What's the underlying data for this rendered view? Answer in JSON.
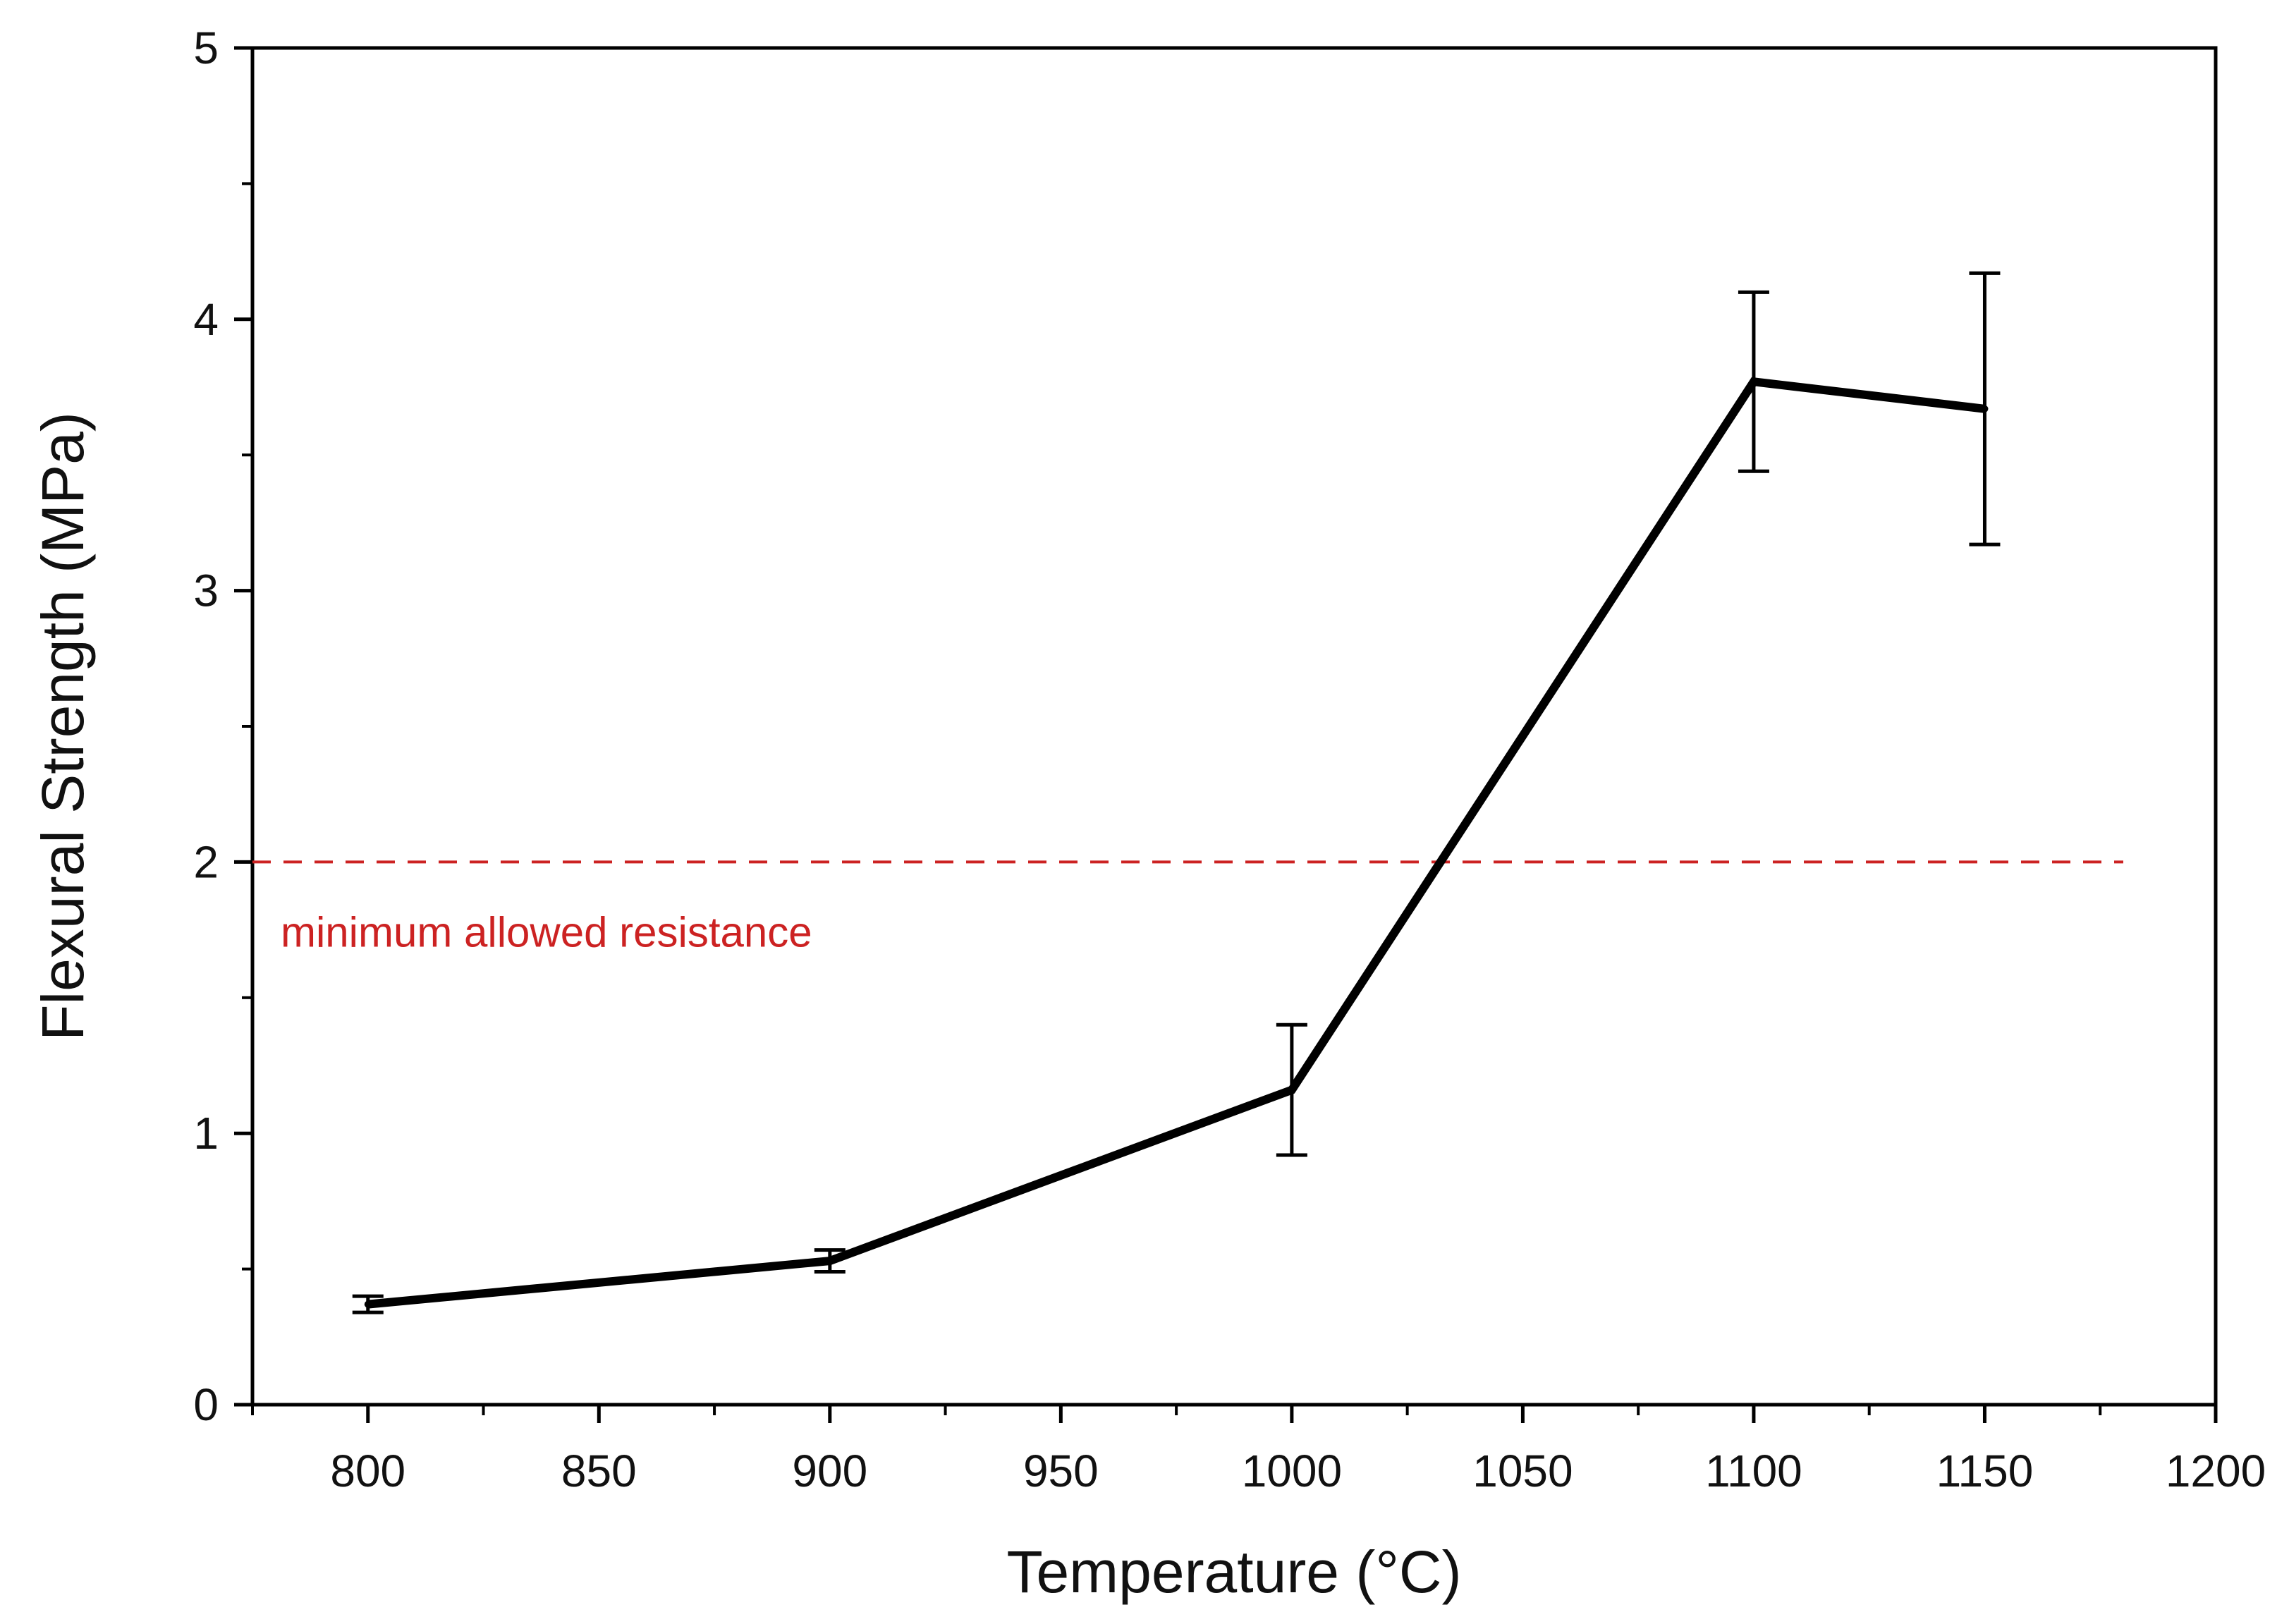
{
  "chart_data": {
    "type": "line",
    "title": "",
    "xlabel": "Temperature (°C)",
    "ylabel": "Flexural Strength (MPa)",
    "xlim": [
      775,
      1200
    ],
    "ylim": [
      0,
      5
    ],
    "x_ticks": [
      800,
      850,
      900,
      950,
      1000,
      1050,
      1100,
      1150,
      1200
    ],
    "x_minor_ticks": [
      775,
      825,
      875,
      925,
      975,
      1025,
      1075,
      1125,
      1175
    ],
    "y_ticks": [
      0,
      1,
      2,
      3,
      4,
      5
    ],
    "y_minor_ticks": [
      0.5,
      1.5,
      2.5,
      3.5,
      4.5
    ],
    "grid": false,
    "series": [
      {
        "name": "Flexural Strength",
        "color": "#000000",
        "x": [
          800,
          900,
          1000,
          1100,
          1150
        ],
        "y": [
          0.37,
          0.53,
          1.16,
          3.77,
          3.67
        ],
        "error": [
          0.03,
          0.04,
          0.24,
          0.33,
          0.5
        ]
      }
    ],
    "reference_line": {
      "y": 2,
      "x_range": [
        775,
        1180
      ],
      "style": "dashed",
      "color": "#cc2222",
      "label": "minimum allowed resistance"
    }
  }
}
